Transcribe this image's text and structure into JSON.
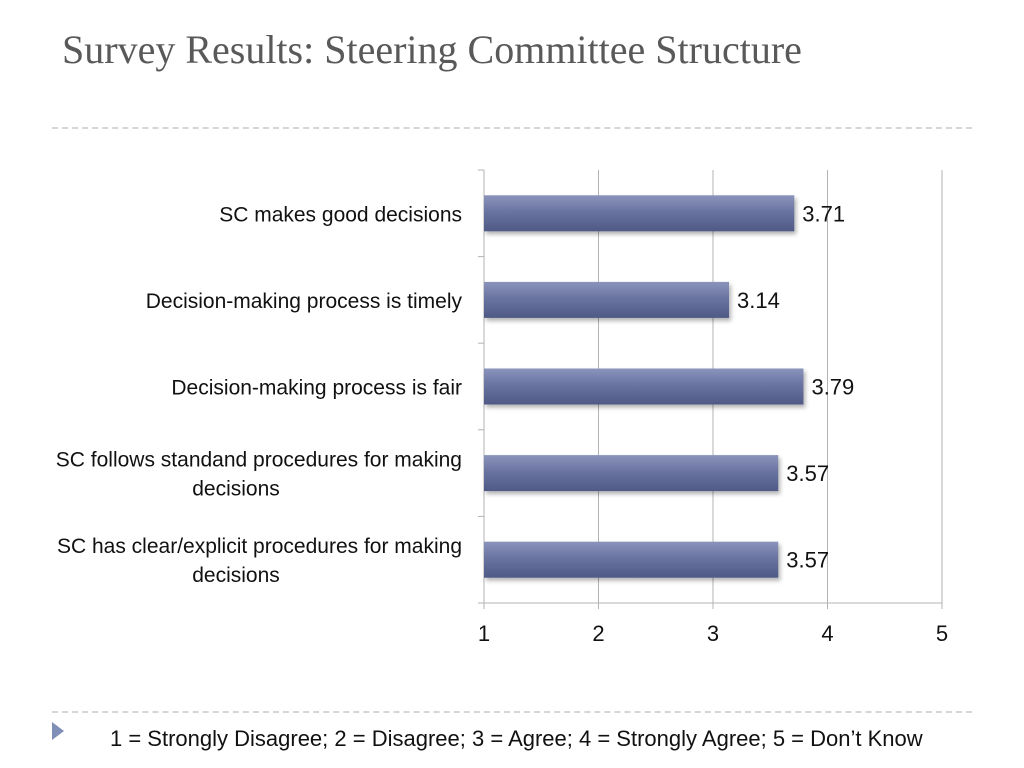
{
  "slide": {
    "title": "Survey Results: Steering Committee Structure",
    "footnote": "1 = Strongly Disagree; 2 = Disagree; 3 = Agree; 4 = Strongly Agree; 5 = Don’t Know"
  },
  "colors": {
    "bar": "#5d6895",
    "bar_highlight": "#8a94bb",
    "gridline": "#b3b3b3",
    "title_text": "#595959",
    "bullet": "#7f8fb8"
  },
  "chart_data": {
    "type": "bar",
    "orientation": "horizontal",
    "categories": [
      "SC makes good decisions",
      "Decision-making process is timely",
      "Decision-making process is fair",
      [
        "SC follows standand procedures for making",
        "decisions"
      ],
      [
        "SC has clear/explicit procedures for making",
        "decisions"
      ]
    ],
    "values": [
      3.71,
      3.14,
      3.79,
      3.57,
      3.57
    ],
    "data_labels": [
      "3.71",
      "3.14",
      "3.79",
      "3.57",
      "3.57"
    ],
    "xlim": [
      1,
      5
    ],
    "xticks": [
      "1",
      "2",
      "3",
      "4",
      "5"
    ],
    "grid": true,
    "title": "",
    "xlabel": "",
    "ylabel": ""
  }
}
